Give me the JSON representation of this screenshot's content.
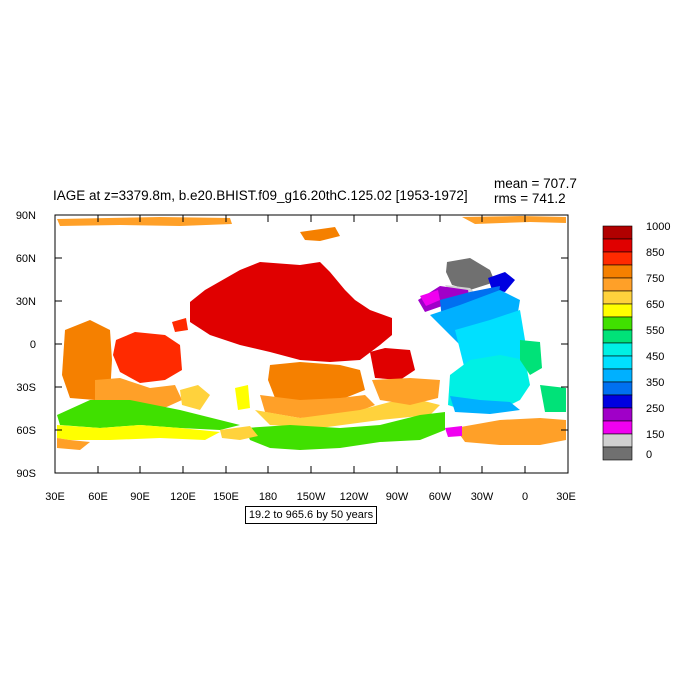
{
  "plot": {
    "title": "IAGE at z=3379.8m, b.e20.BHIST.f09_g16.20thC.125.02 [1953-1972]",
    "mean_text": "mean = 707.7",
    "rms_text": "rms = 741.2",
    "info_text": "19.2 to 965.6 by 50 years"
  },
  "axes": {
    "lat_labels": [
      "90N",
      "60N",
      "30N",
      "0",
      "30S",
      "60S",
      "90S"
    ],
    "lon_labels": [
      "30E",
      "60E",
      "90E",
      "120E",
      "150E",
      "180",
      "150W",
      "120W",
      "90W",
      "60W",
      "30W",
      "0",
      "30E"
    ]
  },
  "colorbar": {
    "labels": [
      "1000",
      "850",
      "750",
      "650",
      "550",
      "450",
      "350",
      "250",
      "150",
      "0"
    ],
    "colors": [
      "#b10000",
      "#e00000",
      "#ff2a00",
      "#f58000",
      "#ffa028",
      "#ffd23c",
      "#ffff00",
      "#40e000",
      "#00e278",
      "#00f0e4",
      "#00e0ff",
      "#00b0ff",
      "#0070f0",
      "#0000e0",
      "#a000c8",
      "#f000f0",
      "#d0d0d0",
      "#707070"
    ]
  },
  "chart_data": {
    "type": "heatmap",
    "variable": "IAGE",
    "title": "IAGE at z=3379.8m, b.e20.BHIST.f09_g16.20thC.125.02 [1953-1972]",
    "mean": 707.7,
    "rms": 741.2,
    "contour_min": 19.2,
    "contour_max": 965.6,
    "contour_interval": 50,
    "units": "years",
    "xlim": [
      "30E",
      "30E"
    ],
    "ylim": [
      "90S",
      "90N"
    ]
  }
}
